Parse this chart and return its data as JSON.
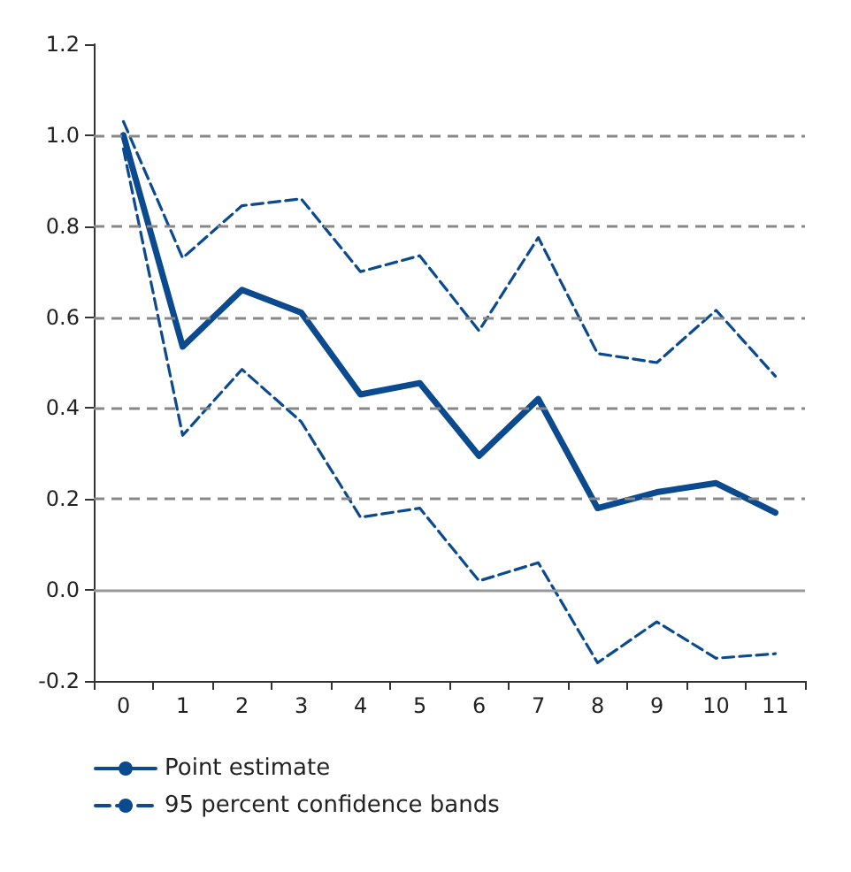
{
  "chart_data": {
    "type": "line",
    "categories": [
      "0",
      "1",
      "2",
      "3",
      "4",
      "5",
      "6",
      "7",
      "8",
      "9",
      "10",
      "11"
    ],
    "series": [
      {
        "name": "Point estimate",
        "color": "#0b4a8e",
        "line_style": "solid",
        "values": [
          1.0,
          0.535,
          0.66,
          0.61,
          0.43,
          0.455,
          0.295,
          0.42,
          0.18,
          0.215,
          0.235,
          0.17
        ]
      },
      {
        "name": "95 percent confidence bands",
        "color": "#0b4a8e",
        "line_style": "dashed",
        "values": [
          1.03,
          0.73,
          0.845,
          0.86,
          0.7,
          0.735,
          0.57,
          0.775,
          0.52,
          0.5,
          0.615,
          0.47
        ]
      },
      {
        "color": "#0b4a8e",
        "line_style": "dashed",
        "values": [
          0.97,
          0.34,
          0.485,
          0.37,
          0.16,
          0.18,
          0.02,
          0.06,
          -0.16,
          -0.07,
          -0.15,
          -0.14
        ]
      }
    ],
    "ylim": [
      -0.2,
      1.2
    ],
    "yticks": [
      {
        "value": -0.2,
        "label": "-0.2"
      },
      {
        "value": 0,
        "label": "0.0"
      },
      {
        "value": 0.2,
        "label": "0.2"
      },
      {
        "value": 0.4,
        "label": "0.4"
      },
      {
        "value": 0.6,
        "label": "0.6"
      },
      {
        "value": 0.8,
        "label": "0.8"
      },
      {
        "value": 1.0,
        "label": "1.0"
      },
      {
        "value": 1.2,
        "label": "1.2"
      }
    ],
    "grid": "y",
    "ref_lines": [
      {
        "axis": "y",
        "value": 0,
        "color": "#999999",
        "line_style": "solid"
      }
    ],
    "legend": "bottom left",
    "marker": "none"
  }
}
